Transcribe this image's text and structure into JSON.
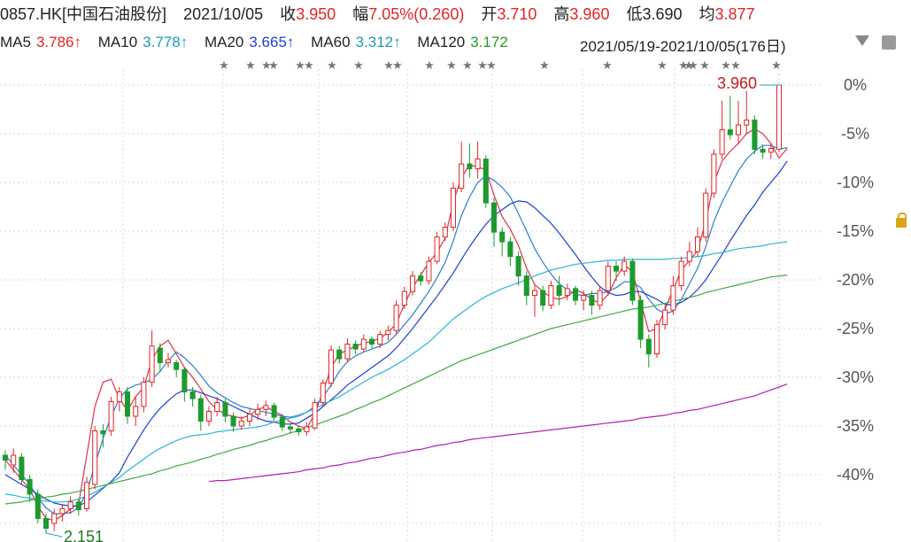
{
  "header": {
    "symbol": "0857.HK[中国石油股份]",
    "date": "2021/10/05",
    "close_label": "收",
    "close_value": "3.950",
    "change_label": "幅",
    "change_value": "7.05%(0.260)",
    "open_label": "开",
    "open_value": "3.710",
    "high_label": "高",
    "high_value": "3.960",
    "low_label": "低",
    "low_value": "3.690",
    "avg_label": "均",
    "avg_value": "3.877"
  },
  "ma_row": {
    "ma5_label": "MA5",
    "ma5_value": "3.786↑",
    "ma10_label": "MA10",
    "ma10_value": "3.778↑",
    "ma20_label": "MA20",
    "ma20_value": "3.665↑",
    "ma60_label": "MA60",
    "ma60_value": "3.312↑",
    "ma120_label": "MA120",
    "ma120_value": "3.172",
    "range_text": "2021/05/19-2021/10/05(176日)"
  },
  "icons": {
    "dropdown": "chevron-down-icon",
    "settings": "settings-icon",
    "lock": "lock-icon"
  },
  "colors": {
    "up": "#e02424",
    "down": "#1d9a2d",
    "ma5": "#e0304d",
    "ma10": "#2a7fd0",
    "ma20": "#1e3fd0",
    "ma60": "#2bb6d6",
    "ma120": "#3daa3d",
    "ma250": "#b21fb2"
  },
  "chart_data": {
    "type": "line",
    "description_axis": "percentage relative to period high",
    "y_ticks": [
      "0%",
      "-5%",
      "-10%",
      "-15%",
      "-20%",
      "-25%",
      "-30%",
      "-35%",
      "-40%"
    ],
    "ylim": [
      -45,
      0
    ],
    "annotations": {
      "high_label": "3.960",
      "low_label": "2.151"
    },
    "series": [
      {
        "name": "MA5",
        "values": [
          -38.5,
          -39.5,
          -40.5,
          -41.5,
          -43.2,
          -44.5,
          -44.7,
          -44.2,
          -43.5,
          -43.0,
          -38.0,
          -33.0,
          -30.5,
          -30.2,
          -32.2,
          -33.4,
          -32.0,
          -31.0,
          -28.2,
          -26.8,
          -26.2,
          -27.6,
          -29.0,
          -30.0,
          -31.2,
          -32.5,
          -33.3,
          -33.8,
          -34.0,
          -34.2,
          -33.9,
          -33.3,
          -33.0,
          -33.5,
          -33.9,
          -34.6,
          -35.0,
          -35.3,
          -33.7,
          -31.5,
          -29.0,
          -27.6,
          -27.2,
          -26.8,
          -26.5,
          -26.3,
          -26.0,
          -25.4,
          -24.5,
          -22.5,
          -20.8,
          -19.5,
          -18.2,
          -17.2,
          -15.7,
          -12.0,
          -9.5,
          -8.2,
          -8.4,
          -8.7,
          -11.3,
          -13.5,
          -14.8,
          -16.5,
          -18.8,
          -20.5,
          -21.2,
          -21.8,
          -22.0,
          -21.7,
          -21.0,
          -21.4,
          -22.0,
          -22.4,
          -21.5,
          -19.8,
          -18.4,
          -19.2,
          -22.2,
          -25.3,
          -25.0,
          -23.0,
          -21.0,
          -19.0,
          -18.0,
          -17.0,
          -14.0,
          -10.0,
          -7.8,
          -6.8,
          -6.0,
          -5.0,
          -4.5,
          -5.0,
          -6.0,
          -7.5,
          -6.5
        ]
      },
      {
        "name": "MA10",
        "values": [
          -38.0,
          -39.0,
          -40.0,
          -41.0,
          -42.4,
          -43.4,
          -44.0,
          -44.0,
          -43.9,
          -43.4,
          -41.8,
          -39.0,
          -36.3,
          -34.0,
          -32.2,
          -31.2,
          -30.8,
          -30.6,
          -30.2,
          -29.4,
          -28.3,
          -27.4,
          -28.0,
          -28.8,
          -29.8,
          -30.9,
          -31.6,
          -32.1,
          -32.6,
          -33.0,
          -33.2,
          -33.4,
          -33.6,
          -33.8,
          -34.0,
          -34.1,
          -33.9,
          -33.6,
          -33.0,
          -32.0,
          -30.8,
          -29.4,
          -28.4,
          -27.8,
          -27.4,
          -27.1,
          -26.8,
          -26.4,
          -25.6,
          -24.6,
          -23.6,
          -22.4,
          -21.2,
          -19.8,
          -18.2,
          -16.0,
          -13.4,
          -11.5,
          -10.0,
          -9.3,
          -9.8,
          -10.5,
          -11.5,
          -13.2,
          -15.0,
          -16.8,
          -18.2,
          -19.4,
          -20.4,
          -21.0,
          -21.5,
          -21.6,
          -21.4,
          -21.4,
          -21.2,
          -20.8,
          -20.2,
          -20.2,
          -20.8,
          -22.0,
          -23.0,
          -23.5,
          -23.2,
          -22.0,
          -20.4,
          -18.8,
          -16.6,
          -14.0,
          -12.0,
          -10.4,
          -8.8,
          -7.6,
          -6.8,
          -6.2,
          -6.2,
          -6.6,
          -6.4
        ]
      },
      {
        "name": "MA20",
        "values": [
          -40.0,
          -40.5,
          -41.0,
          -41.5,
          -42.0,
          -42.5,
          -42.9,
          -43.1,
          -43.2,
          -43.2,
          -42.8,
          -42.1,
          -41.4,
          -40.7,
          -39.8,
          -38.2,
          -36.8,
          -35.4,
          -34.2,
          -33.2,
          -32.4,
          -31.7,
          -31.3,
          -31.3,
          -31.6,
          -31.9,
          -32.2,
          -32.6,
          -33.0,
          -33.4,
          -33.8,
          -34.2,
          -34.5,
          -34.6,
          -34.8,
          -34.8,
          -34.7,
          -34.2,
          -33.7,
          -33.0,
          -32.3,
          -31.6,
          -30.8,
          -30.2,
          -29.6,
          -29.0,
          -28.4,
          -27.8,
          -27.0,
          -26.0,
          -25.0,
          -23.9,
          -22.8,
          -21.7,
          -20.5,
          -19.3,
          -17.9,
          -16.6,
          -15.4,
          -14.3,
          -13.4,
          -12.8,
          -12.2,
          -11.9,
          -12.0,
          -12.6,
          -13.4,
          -14.2,
          -15.2,
          -16.3,
          -17.4,
          -18.6,
          -19.7,
          -20.7,
          -21.3,
          -21.6,
          -21.5,
          -21.2,
          -21.2,
          -21.6,
          -22.0,
          -22.5,
          -22.6,
          -22.3,
          -21.8,
          -21.0,
          -20.0,
          -18.7,
          -17.4,
          -16.0,
          -14.7,
          -13.4,
          -12.3,
          -11.0,
          -10.0,
          -9.0,
          -7.8
        ]
      },
      {
        "name": "MA60",
        "values": [
          -42.0,
          -42.1,
          -42.3,
          -42.4,
          -42.6,
          -42.7,
          -42.8,
          -42.8,
          -42.7,
          -42.5,
          -42.2,
          -41.8,
          -41.3,
          -40.8,
          -40.3,
          -39.6,
          -39.0,
          -38.4,
          -37.8,
          -37.3,
          -36.9,
          -36.5,
          -36.2,
          -36.0,
          -35.9,
          -35.8,
          -35.6,
          -35.5,
          -35.4,
          -35.3,
          -35.2,
          -35.1,
          -34.9,
          -34.6,
          -34.4,
          -34.2,
          -34.0,
          -33.6,
          -33.2,
          -32.8,
          -32.4,
          -32.0,
          -31.5,
          -31.0,
          -30.5,
          -30.0,
          -29.6,
          -29.2,
          -28.7,
          -28.2,
          -27.6,
          -27.0,
          -26.4,
          -25.6,
          -24.8,
          -24.0,
          -23.4,
          -22.8,
          -22.2,
          -21.7,
          -21.3,
          -20.9,
          -20.6,
          -20.3,
          -20.0,
          -19.6,
          -19.3,
          -19.0,
          -18.8,
          -18.6,
          -18.4,
          -18.3,
          -18.2,
          -18.1,
          -18.0,
          -18.0,
          -17.9,
          -17.9,
          -17.9,
          -17.9,
          -17.9,
          -17.9,
          -17.8,
          -17.8,
          -17.7,
          -17.6,
          -17.5,
          -17.3,
          -17.2,
          -17.0,
          -16.8,
          -16.7,
          -16.6,
          -16.5,
          -16.3,
          -16.2,
          -16.1
        ]
      },
      {
        "name": "MA120",
        "values": [
          -43.0,
          -42.9,
          -42.8,
          -42.6,
          -42.5,
          -42.3,
          -42.2,
          -42.0,
          -41.9,
          -41.7,
          -41.5,
          -41.3,
          -41.1,
          -40.9,
          -40.7,
          -40.5,
          -40.3,
          -40.1,
          -39.9,
          -39.6,
          -39.4,
          -39.1,
          -38.9,
          -38.7,
          -38.4,
          -38.2,
          -37.9,
          -37.7,
          -37.4,
          -37.2,
          -37.0,
          -36.7,
          -36.5,
          -36.2,
          -36.0,
          -35.7,
          -35.5,
          -35.2,
          -34.9,
          -34.6,
          -34.3,
          -34.0,
          -33.7,
          -33.3,
          -33.0,
          -32.6,
          -32.3,
          -31.9,
          -31.5,
          -31.1,
          -30.7,
          -30.3,
          -29.9,
          -29.5,
          -29.1,
          -28.7,
          -28.3,
          -28.0,
          -27.7,
          -27.4,
          -27.1,
          -26.8,
          -26.5,
          -26.2,
          -25.9,
          -25.6,
          -25.3,
          -25.0,
          -24.8,
          -24.6,
          -24.4,
          -24.2,
          -24.0,
          -23.8,
          -23.6,
          -23.4,
          -23.2,
          -23.0,
          -22.9,
          -22.8,
          -22.6,
          -22.4,
          -22.2,
          -22.0,
          -21.8,
          -21.6,
          -21.3,
          -21.1,
          -20.9,
          -20.7,
          -20.5,
          -20.3,
          -20.1,
          -19.9,
          -19.7,
          -19.6,
          -19.5
        ]
      },
      {
        "name": "",
        "values": [
          null,
          null,
          null,
          null,
          null,
          null,
          null,
          null,
          null,
          null,
          null,
          null,
          null,
          null,
          null,
          null,
          null,
          null,
          null,
          null,
          null,
          null,
          null,
          null,
          null,
          -40.7,
          -40.6,
          -40.6,
          -40.5,
          -40.4,
          -40.3,
          -40.2,
          -40.1,
          -40.0,
          -39.9,
          -39.8,
          -39.7,
          -39.5,
          -39.4,
          -39.3,
          -39.1,
          -39.0,
          -38.8,
          -38.7,
          -38.5,
          -38.3,
          -38.2,
          -38.0,
          -37.8,
          -37.7,
          -37.5,
          -37.4,
          -37.2,
          -37.0,
          -36.9,
          -36.7,
          -36.6,
          -36.4,
          -36.3,
          -36.2,
          -36.1,
          -36.0,
          -35.9,
          -35.8,
          -35.7,
          -35.6,
          -35.5,
          -35.4,
          -35.3,
          -35.2,
          -35.1,
          -35.0,
          -34.9,
          -34.8,
          -34.7,
          -34.6,
          -34.5,
          -34.4,
          -34.2,
          -34.1,
          -34.0,
          -33.9,
          -33.7,
          -33.6,
          -33.4,
          -33.3,
          -33.1,
          -32.9,
          -32.7,
          -32.5,
          -32.3,
          -32.1,
          -31.9,
          -31.6,
          -31.3,
          -31.0,
          -30.7
        ]
      }
    ],
    "candles": [
      [
        -38.0,
        -38.5,
        -37.5,
        -39.5
      ],
      [
        -39.0,
        -38.0,
        -37.3,
        -39.8
      ],
      [
        -38.2,
        -40.5,
        -37.8,
        -41.0
      ],
      [
        -40.5,
        -42.0,
        -40.0,
        -42.8
      ],
      [
        -42.0,
        -44.5,
        -41.5,
        -45.0
      ],
      [
        -44.5,
        -45.5,
        -44.0,
        -46.0
      ],
      [
        -45.0,
        -44.0,
        -43.5,
        -45.8
      ],
      [
        -44.0,
        -43.5,
        -43.0,
        -44.8
      ],
      [
        -43.5,
        -42.8,
        -42.2,
        -44.0
      ],
      [
        -42.8,
        -43.6,
        -42.5,
        -44.2
      ],
      [
        -43.5,
        -40.8,
        -40.2,
        -43.8
      ],
      [
        -41.0,
        -35.5,
        -35.0,
        -41.5
      ],
      [
        -35.5,
        -35.8,
        -34.8,
        -37.2
      ],
      [
        -35.5,
        -32.5,
        -32.0,
        -36.0
      ],
      [
        -32.5,
        -31.5,
        -31.0,
        -33.5
      ],
      [
        -31.5,
        -34.0,
        -31.0,
        -34.8
      ],
      [
        -34.0,
        -33.0,
        -32.0,
        -35.0
      ],
      [
        -33.0,
        -30.5,
        -30.0,
        -33.6
      ],
      [
        -30.5,
        -26.8,
        -25.2,
        -31.0
      ],
      [
        -27.0,
        -28.5,
        -26.5,
        -29.5
      ],
      [
        -28.5,
        -28.2,
        -27.5,
        -29.0
      ],
      [
        -28.5,
        -29.2,
        -28.2,
        -30.0
      ],
      [
        -29.2,
        -31.5,
        -29.0,
        -32.5
      ],
      [
        -31.5,
        -32.2,
        -31.0,
        -33.0
      ],
      [
        -32.2,
        -34.5,
        -31.8,
        -35.5
      ],
      [
        -34.5,
        -33.5,
        -33.0,
        -35.0
      ],
      [
        -33.5,
        -32.6,
        -32.0,
        -34.0
      ],
      [
        -32.6,
        -34.0,
        -32.2,
        -34.6
      ],
      [
        -34.0,
        -35.0,
        -33.6,
        -35.6
      ],
      [
        -35.0,
        -34.5,
        -34.0,
        -35.4
      ],
      [
        -34.5,
        -33.8,
        -33.2,
        -35.0
      ],
      [
        -33.8,
        -33.3,
        -32.7,
        -34.4
      ],
      [
        -33.3,
        -32.9,
        -32.4,
        -34.0
      ],
      [
        -32.9,
        -34.1,
        -32.6,
        -34.6
      ],
      [
        -34.1,
        -35.1,
        -33.8,
        -35.5
      ],
      [
        -35.1,
        -35.3,
        -34.8,
        -35.8
      ],
      [
        -35.3,
        -35.6,
        -35.0,
        -36.0
      ],
      [
        -35.6,
        -35.1,
        -34.6,
        -36.0
      ],
      [
        -35.2,
        -32.6,
        -32.2,
        -35.4
      ],
      [
        -32.6,
        -30.6,
        -30.2,
        -33.0
      ],
      [
        -30.6,
        -27.2,
        -26.7,
        -31.0
      ],
      [
        -27.2,
        -28.1,
        -26.8,
        -28.6
      ],
      [
        -28.1,
        -26.6,
        -26.0,
        -28.5
      ],
      [
        -26.6,
        -27.1,
        -26.2,
        -27.6
      ],
      [
        -27.1,
        -26.1,
        -25.6,
        -27.4
      ],
      [
        -26.1,
        -26.6,
        -25.8,
        -27.0
      ],
      [
        -26.6,
        -25.6,
        -25.2,
        -27.0
      ],
      [
        -25.6,
        -25.2,
        -24.7,
        -26.2
      ],
      [
        -25.2,
        -22.6,
        -22.1,
        -25.6
      ],
      [
        -22.6,
        -21.2,
        -20.7,
        -23.0
      ],
      [
        -21.2,
        -19.6,
        -19.1,
        -21.6
      ],
      [
        -19.6,
        -20.1,
        -19.2,
        -20.6
      ],
      [
        -20.1,
        -18.1,
        -17.6,
        -20.5
      ],
      [
        -18.1,
        -15.6,
        -15.1,
        -18.4
      ],
      [
        -15.6,
        -14.6,
        -14.1,
        -16.0
      ],
      [
        -14.6,
        -10.6,
        -10.0,
        -15.0
      ],
      [
        -10.6,
        -8.1,
        -5.8,
        -11.0
      ],
      [
        -8.1,
        -8.6,
        -6.0,
        -9.5
      ],
      [
        -8.6,
        -7.6,
        -5.8,
        -9.6
      ],
      [
        -7.6,
        -12.1,
        -7.2,
        -12.6
      ],
      [
        -12.1,
        -15.1,
        -11.6,
        -16.6
      ],
      [
        -15.1,
        -16.1,
        -14.6,
        -17.6
      ],
      [
        -16.1,
        -17.6,
        -15.6,
        -18.6
      ],
      [
        -17.6,
        -19.6,
        -17.1,
        -20.6
      ],
      [
        -19.6,
        -21.6,
        -19.1,
        -22.6
      ],
      [
        -21.6,
        -21.1,
        -20.6,
        -23.8
      ],
      [
        -21.1,
        -22.6,
        -20.6,
        -23.2
      ],
      [
        -22.6,
        -20.6,
        -20.1,
        -23.0
      ],
      [
        -20.6,
        -21.6,
        -19.6,
        -22.6
      ],
      [
        -21.6,
        -20.9,
        -20.4,
        -22.1
      ],
      [
        -20.9,
        -22.1,
        -20.6,
        -22.6
      ],
      [
        -22.1,
        -21.6,
        -21.1,
        -23.1
      ],
      [
        -21.6,
        -22.6,
        -21.1,
        -23.6
      ],
      [
        -22.6,
        -21.1,
        -20.6,
        -23.1
      ],
      [
        -21.1,
        -18.6,
        -18.1,
        -21.6
      ],
      [
        -18.6,
        -19.1,
        -18.1,
        -20.1
      ],
      [
        -19.1,
        -18.1,
        -17.6,
        -19.6
      ],
      [
        -18.1,
        -22.1,
        -17.8,
        -22.6
      ],
      [
        -22.1,
        -26.1,
        -21.6,
        -27.0
      ],
      [
        -26.1,
        -27.6,
        -25.6,
        -29.0
      ],
      [
        -27.6,
        -24.6,
        -24.1,
        -28.0
      ],
      [
        -24.6,
        -23.1,
        -22.6,
        -25.1
      ],
      [
        -23.1,
        -20.6,
        -19.6,
        -23.6
      ],
      [
        -20.6,
        -18.1,
        -17.6,
        -21.1
      ],
      [
        -18.1,
        -17.1,
        -16.1,
        -18.6
      ],
      [
        -17.1,
        -15.6,
        -14.6,
        -17.6
      ],
      [
        -15.6,
        -11.1,
        -10.6,
        -16.1
      ],
      [
        -11.1,
        -7.1,
        -6.6,
        -11.6
      ],
      [
        -7.1,
        -4.6,
        -1.6,
        -7.6
      ],
      [
        -4.6,
        -5.1,
        -1.1,
        -5.6
      ],
      [
        -5.1,
        -4.1,
        -1.6,
        -6.1
      ],
      [
        -4.1,
        -3.6,
        -0.6,
        -5.1
      ],
      [
        -3.6,
        -6.6,
        -3.1,
        -7.1
      ],
      [
        -6.6,
        -6.9,
        -6.1,
        -7.6
      ],
      [
        -6.9,
        -6.5,
        -6.0,
        -7.6
      ],
      [
        -6.6,
        0.0,
        0.0,
        -6.9
      ]
    ]
  }
}
